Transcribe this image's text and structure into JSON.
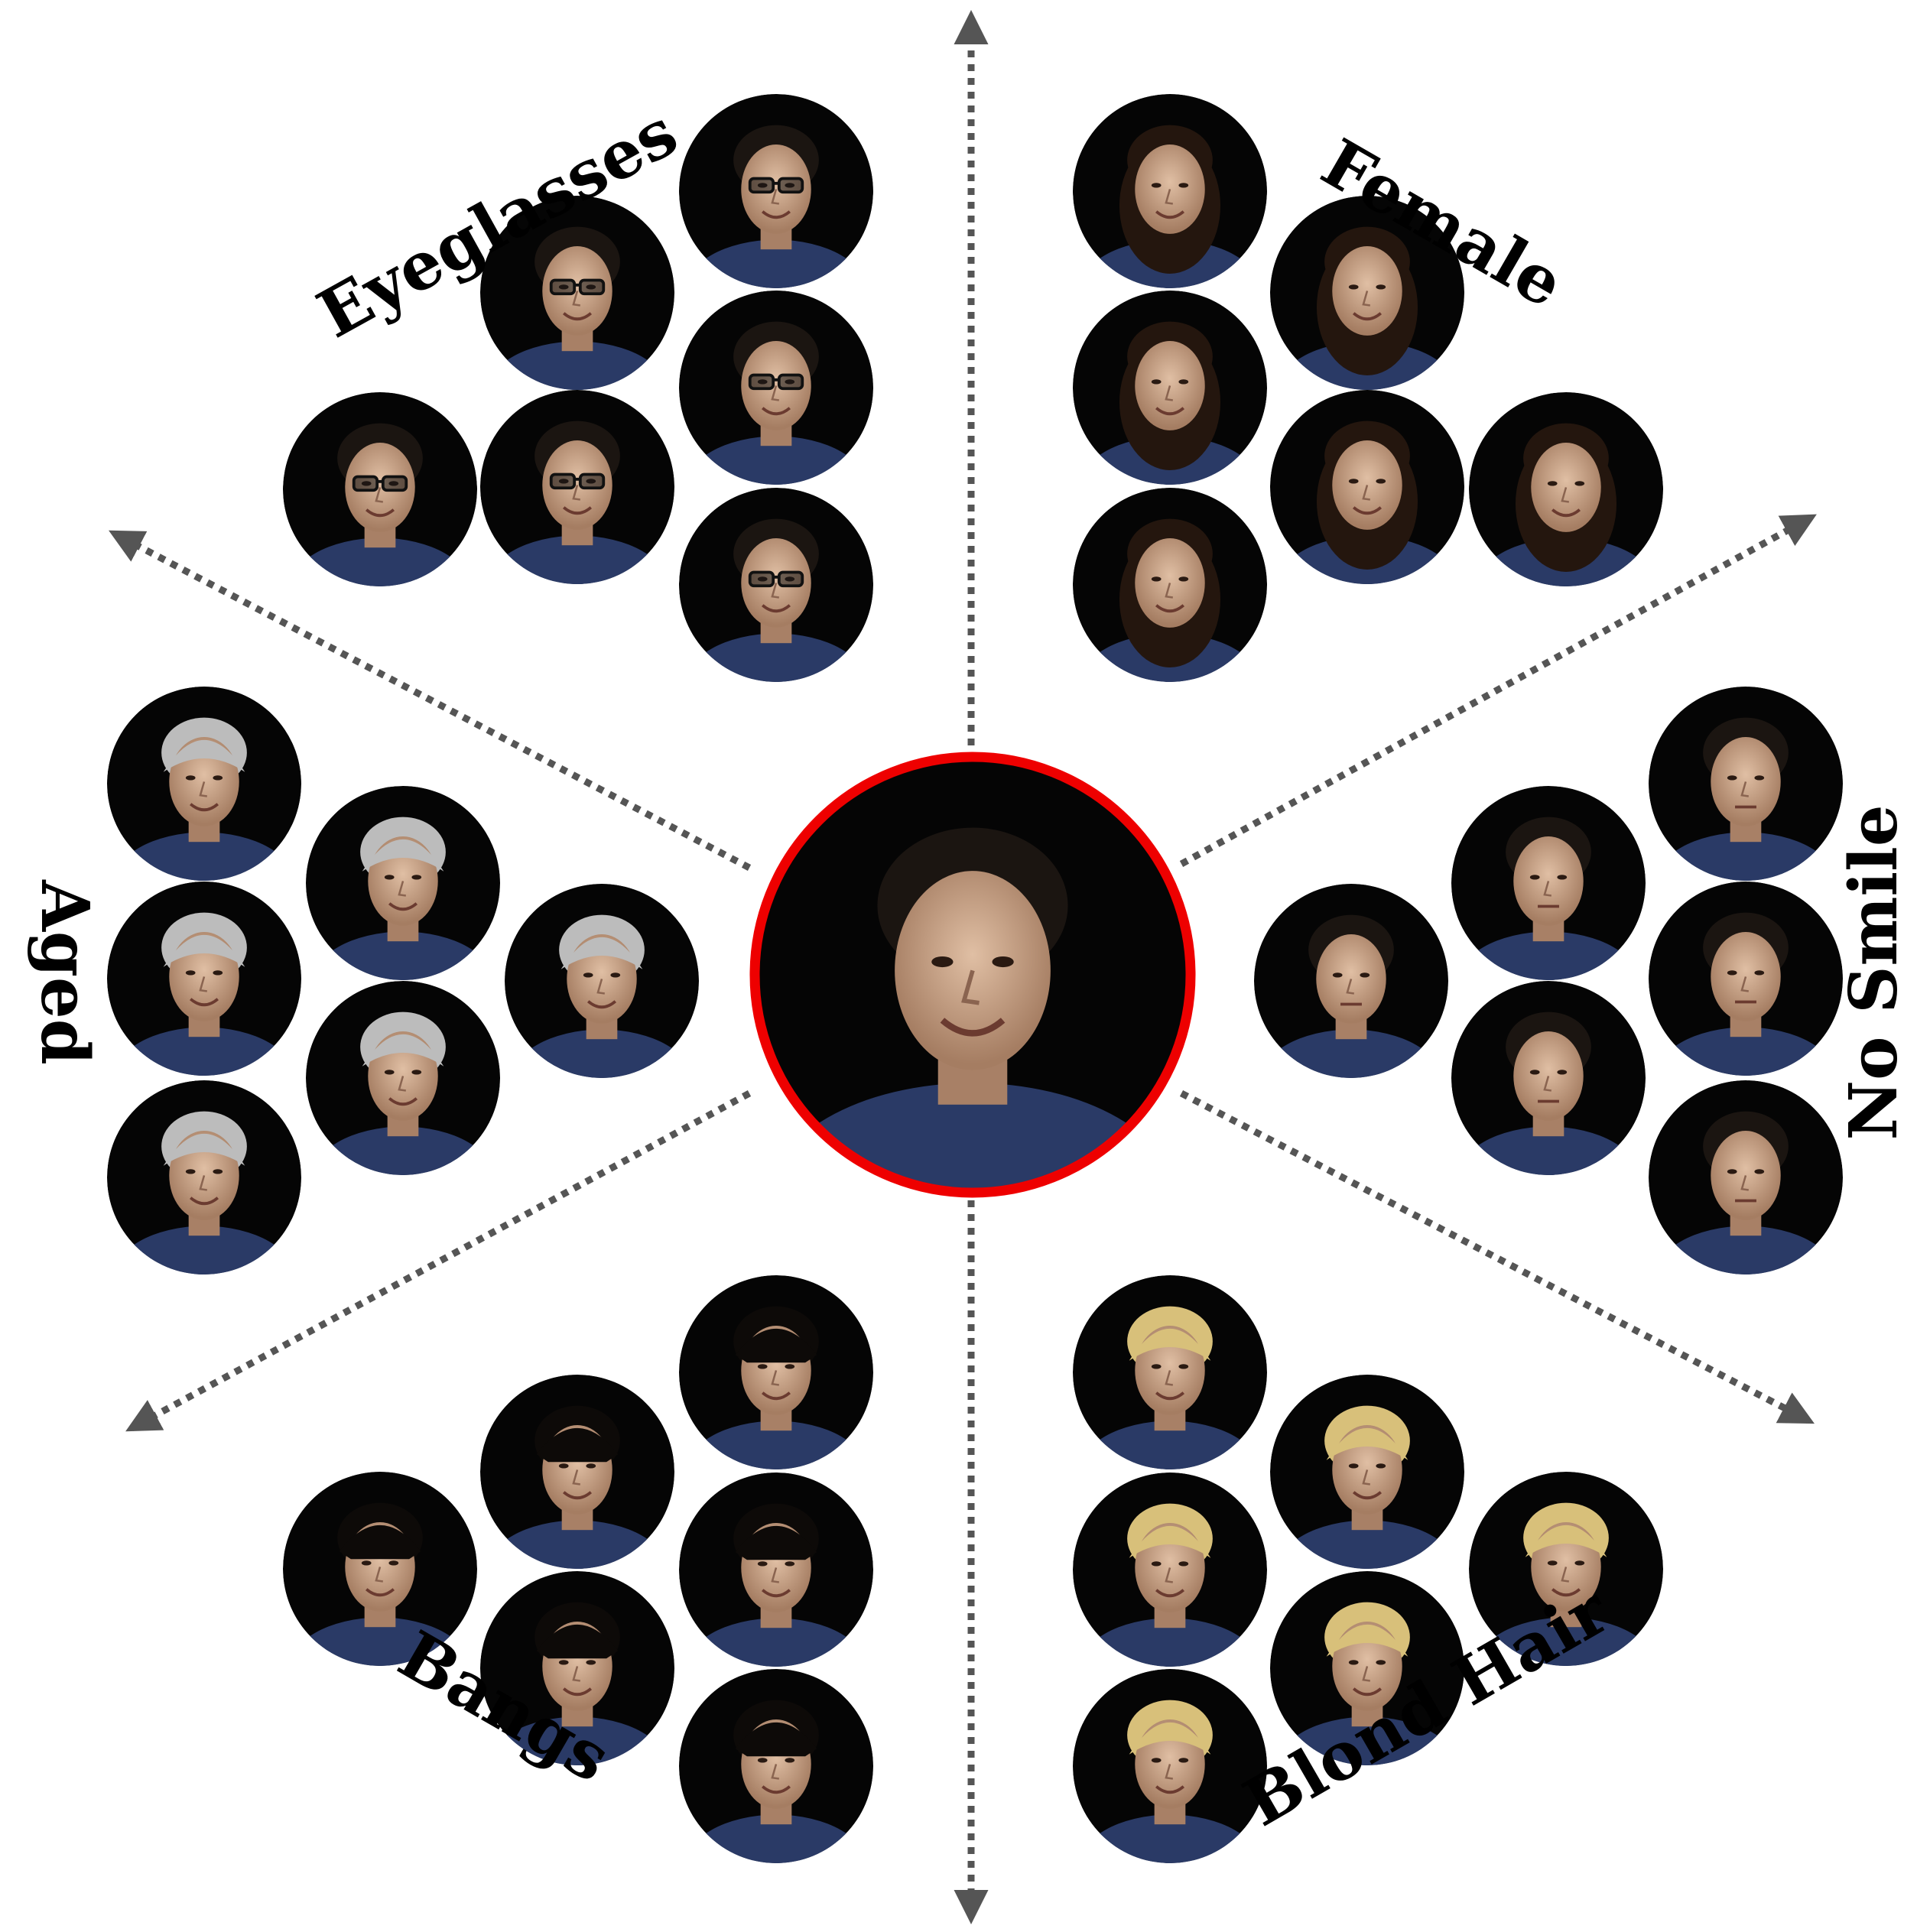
{
  "colors": {
    "background": "#ffffff",
    "arrow": "#555555",
    "center_ring": "#ee0000",
    "face_background": "#050505",
    "skin": "#c9a489",
    "shirt": "#2a3a66"
  },
  "center": {
    "icon": "face-thumbnail"
  },
  "groups": [
    {
      "key": "eyeglasses",
      "label": "Eyeglasses",
      "count": 6,
      "hair": "#1b1511",
      "accessory": "glasses"
    },
    {
      "key": "female",
      "label": "Female",
      "count": 6,
      "hair": "#24160e",
      "accessory": "long-hair"
    },
    {
      "key": "no-smile",
      "label": "No Smile",
      "count": 6,
      "hair": "#1b1511",
      "accessory": "none"
    },
    {
      "key": "blond-hair",
      "label": "Blond Hair",
      "count": 6,
      "hair": "#d8c07a",
      "accessory": "blond"
    },
    {
      "key": "bangs",
      "label": "Bangs",
      "count": 6,
      "hair": "#0d0a08",
      "accessory": "bangs"
    },
    {
      "key": "aged",
      "label": "Aged",
      "count": 6,
      "hair": "#bcbcbc",
      "accessory": "grey"
    }
  ]
}
